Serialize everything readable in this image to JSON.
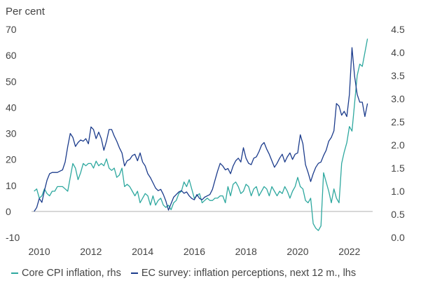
{
  "chart_data": {
    "type": "line",
    "title": "",
    "ylabel_left": "Per cent",
    "ylim_left": [
      -10,
      70
    ],
    "yticks_left": [
      "-10",
      "0",
      "10",
      "20",
      "30",
      "40",
      "50",
      "60",
      "70"
    ],
    "ylim_right": [
      0.0,
      4.5
    ],
    "yticks_right": [
      "0.0",
      "0.5",
      "1.0",
      "1.5",
      "2.0",
      "2.5",
      "3.0",
      "3.5",
      "4.0",
      "4.5"
    ],
    "xlim": [
      2009.7,
      2022.9
    ],
    "xticks": [
      "2010",
      "2012",
      "2014",
      "2016",
      "2018",
      "2020",
      "2022"
    ],
    "grid": false,
    "legend_position": "bottom",
    "series": [
      {
        "name": "Core CPI inflation, rhs",
        "axis": "right",
        "color": "#2ea89f",
        "points": [
          [
            2009.8,
            1.0
          ],
          [
            2009.9,
            1.05
          ],
          [
            2010.0,
            0.85
          ],
          [
            2010.1,
            0.9
          ],
          [
            2010.2,
            1.05
          ],
          [
            2010.3,
            0.95
          ],
          [
            2010.4,
            0.9
          ],
          [
            2010.5,
            1.0
          ],
          [
            2010.6,
            1.0
          ],
          [
            2010.7,
            1.1
          ],
          [
            2010.8,
            1.1
          ],
          [
            2010.9,
            1.1
          ],
          [
            2011.0,
            1.05
          ],
          [
            2011.1,
            1.0
          ],
          [
            2011.2,
            1.3
          ],
          [
            2011.3,
            1.6
          ],
          [
            2011.4,
            1.5
          ],
          [
            2011.5,
            1.25
          ],
          [
            2011.6,
            1.4
          ],
          [
            2011.7,
            1.6
          ],
          [
            2011.8,
            1.55
          ],
          [
            2011.9,
            1.6
          ],
          [
            2012.0,
            1.6
          ],
          [
            2012.1,
            1.5
          ],
          [
            2012.2,
            1.65
          ],
          [
            2012.3,
            1.55
          ],
          [
            2012.4,
            1.6
          ],
          [
            2012.5,
            1.55
          ],
          [
            2012.6,
            1.7
          ],
          [
            2012.7,
            1.5
          ],
          [
            2012.8,
            1.45
          ],
          [
            2012.9,
            1.5
          ],
          [
            2013.0,
            1.3
          ],
          [
            2013.1,
            1.35
          ],
          [
            2013.2,
            1.5
          ],
          [
            2013.3,
            1.1
          ],
          [
            2013.4,
            1.15
          ],
          [
            2013.5,
            1.1
          ],
          [
            2013.6,
            1.0
          ],
          [
            2013.7,
            0.9
          ],
          [
            2013.8,
            1.0
          ],
          [
            2013.9,
            0.75
          ],
          [
            2014.0,
            0.85
          ],
          [
            2014.1,
            0.95
          ],
          [
            2014.2,
            0.9
          ],
          [
            2014.3,
            0.7
          ],
          [
            2014.4,
            0.9
          ],
          [
            2014.5,
            0.7
          ],
          [
            2014.6,
            0.8
          ],
          [
            2014.7,
            0.85
          ],
          [
            2014.8,
            0.7
          ],
          [
            2014.9,
            0.65
          ],
          [
            2015.0,
            0.7
          ],
          [
            2015.1,
            0.6
          ],
          [
            2015.2,
            0.75
          ],
          [
            2015.3,
            0.8
          ],
          [
            2015.4,
            0.95
          ],
          [
            2015.5,
            1.0
          ],
          [
            2015.6,
            1.2
          ],
          [
            2015.7,
            1.1
          ],
          [
            2015.8,
            1.25
          ],
          [
            2015.9,
            1.05
          ],
          [
            2016.0,
            0.85
          ],
          [
            2016.1,
            0.9
          ],
          [
            2016.2,
            0.95
          ],
          [
            2016.3,
            0.75
          ],
          [
            2016.4,
            0.8
          ],
          [
            2016.5,
            0.85
          ],
          [
            2016.6,
            0.8
          ],
          [
            2016.7,
            0.8
          ],
          [
            2016.8,
            0.85
          ],
          [
            2016.9,
            0.85
          ],
          [
            2017.0,
            0.9
          ],
          [
            2017.1,
            0.9
          ],
          [
            2017.2,
            0.75
          ],
          [
            2017.3,
            1.1
          ],
          [
            2017.4,
            0.9
          ],
          [
            2017.5,
            1.15
          ],
          [
            2017.6,
            1.2
          ],
          [
            2017.7,
            1.1
          ],
          [
            2017.8,
            0.95
          ],
          [
            2017.9,
            1.0
          ],
          [
            2018.0,
            1.15
          ],
          [
            2018.1,
            1.1
          ],
          [
            2018.2,
            0.9
          ],
          [
            2018.3,
            1.05
          ],
          [
            2018.4,
            1.1
          ],
          [
            2018.5,
            0.9
          ],
          [
            2018.6,
            1.0
          ],
          [
            2018.7,
            1.1
          ],
          [
            2018.8,
            1.05
          ],
          [
            2018.9,
            0.9
          ],
          [
            2019.0,
            1.1
          ],
          [
            2019.1,
            1.0
          ],
          [
            2019.2,
            0.9
          ],
          [
            2019.3,
            1.0
          ],
          [
            2019.4,
            0.95
          ],
          [
            2019.5,
            1.1
          ],
          [
            2019.6,
            1.0
          ],
          [
            2019.7,
            0.85
          ],
          [
            2019.8,
            1.0
          ],
          [
            2019.9,
            1.1
          ],
          [
            2020.0,
            1.3
          ],
          [
            2020.1,
            1.1
          ],
          [
            2020.2,
            1.05
          ],
          [
            2020.3,
            0.8
          ],
          [
            2020.4,
            0.75
          ],
          [
            2020.5,
            0.85
          ],
          [
            2020.6,
            0.3
          ],
          [
            2020.7,
            0.2
          ],
          [
            2020.8,
            0.15
          ],
          [
            2020.9,
            0.25
          ],
          [
            2021.0,
            1.4
          ],
          [
            2021.1,
            1.2
          ],
          [
            2021.2,
            1.0
          ],
          [
            2021.3,
            0.75
          ],
          [
            2021.4,
            1.05
          ],
          [
            2021.5,
            0.85
          ],
          [
            2021.6,
            0.75
          ],
          [
            2021.7,
            1.6
          ],
          [
            2021.8,
            1.85
          ],
          [
            2021.9,
            2.05
          ],
          [
            2022.0,
            2.4
          ],
          [
            2022.1,
            2.3
          ],
          [
            2022.2,
            2.9
          ],
          [
            2022.3,
            3.5
          ],
          [
            2022.4,
            3.75
          ],
          [
            2022.5,
            3.7
          ],
          [
            2022.6,
            4.0
          ],
          [
            2022.7,
            4.3
          ]
        ]
      },
      {
        "name": "EC survey: inflation perceptions, next 12 m., lhs",
        "axis": "left",
        "color": "#1c3c8c",
        "points": [
          [
            2009.8,
            0.0
          ],
          [
            2009.9,
            1.5
          ],
          [
            2010.0,
            5.0
          ],
          [
            2010.1,
            3.5
          ],
          [
            2010.2,
            8.0
          ],
          [
            2010.3,
            12.0
          ],
          [
            2010.4,
            14.5
          ],
          [
            2010.5,
            15.0
          ],
          [
            2010.6,
            15.0
          ],
          [
            2010.7,
            15.0
          ],
          [
            2010.8,
            15.5
          ],
          [
            2010.9,
            16.0
          ],
          [
            2011.0,
            19.0
          ],
          [
            2011.1,
            25.0
          ],
          [
            2011.2,
            30.0
          ],
          [
            2011.3,
            28.5
          ],
          [
            2011.4,
            25.0
          ],
          [
            2011.5,
            26.5
          ],
          [
            2011.6,
            27.5
          ],
          [
            2011.7,
            27.0
          ],
          [
            2011.8,
            28.0
          ],
          [
            2011.9,
            26.0
          ],
          [
            2012.0,
            32.5
          ],
          [
            2012.1,
            31.5
          ],
          [
            2012.2,
            28.0
          ],
          [
            2012.3,
            30.5
          ],
          [
            2012.4,
            28.0
          ],
          [
            2012.5,
            23.5
          ],
          [
            2012.6,
            27.0
          ],
          [
            2012.7,
            31.5
          ],
          [
            2012.8,
            31.5
          ],
          [
            2012.9,
            29.0
          ],
          [
            2013.0,
            27.0
          ],
          [
            2013.1,
            24.5
          ],
          [
            2013.2,
            22.5
          ],
          [
            2013.3,
            17.5
          ],
          [
            2013.4,
            19.5
          ],
          [
            2013.5,
            20.0
          ],
          [
            2013.6,
            21.5
          ],
          [
            2013.7,
            22.0
          ],
          [
            2013.8,
            19.5
          ],
          [
            2013.9,
            22.5
          ],
          [
            2014.0,
            19.0
          ],
          [
            2014.1,
            17.5
          ],
          [
            2014.2,
            14.5
          ],
          [
            2014.3,
            13.0
          ],
          [
            2014.4,
            11.0
          ],
          [
            2014.5,
            9.0
          ],
          [
            2014.6,
            8.0
          ],
          [
            2014.7,
            8.5
          ],
          [
            2014.8,
            6.5
          ],
          [
            2014.9,
            4.0
          ],
          [
            2015.0,
            0.5
          ],
          [
            2015.1,
            3.0
          ],
          [
            2015.2,
            5.5
          ],
          [
            2015.3,
            6.5
          ],
          [
            2015.4,
            7.5
          ],
          [
            2015.5,
            8.0
          ],
          [
            2015.6,
            7.0
          ],
          [
            2015.7,
            7.5
          ],
          [
            2015.8,
            6.0
          ],
          [
            2015.9,
            5.0
          ],
          [
            2016.0,
            4.5
          ],
          [
            2016.1,
            6.5
          ],
          [
            2016.2,
            5.0
          ],
          [
            2016.3,
            4.5
          ],
          [
            2016.4,
            5.5
          ],
          [
            2016.5,
            6.0
          ],
          [
            2016.6,
            6.5
          ],
          [
            2016.7,
            8.5
          ],
          [
            2016.8,
            12.0
          ],
          [
            2016.9,
            15.5
          ],
          [
            2017.0,
            18.5
          ],
          [
            2017.1,
            17.5
          ],
          [
            2017.2,
            16.0
          ],
          [
            2017.3,
            16.5
          ],
          [
            2017.4,
            14.5
          ],
          [
            2017.5,
            17.5
          ],
          [
            2017.6,
            19.5
          ],
          [
            2017.7,
            20.5
          ],
          [
            2017.8,
            19.0
          ],
          [
            2017.9,
            24.5
          ],
          [
            2018.0,
            20.5
          ],
          [
            2018.1,
            18.5
          ],
          [
            2018.2,
            18.0
          ],
          [
            2018.3,
            20.5
          ],
          [
            2018.4,
            21.0
          ],
          [
            2018.5,
            23.0
          ],
          [
            2018.6,
            25.5
          ],
          [
            2018.7,
            26.5
          ],
          [
            2018.8,
            24.0
          ],
          [
            2018.9,
            22.0
          ],
          [
            2019.0,
            19.5
          ],
          [
            2019.1,
            17.0
          ],
          [
            2019.2,
            18.5
          ],
          [
            2019.3,
            20.5
          ],
          [
            2019.4,
            22.0
          ],
          [
            2019.5,
            19.0
          ],
          [
            2019.6,
            21.0
          ],
          [
            2019.7,
            22.5
          ],
          [
            2019.8,
            20.0
          ],
          [
            2019.9,
            22.0
          ],
          [
            2020.0,
            22.5
          ],
          [
            2020.1,
            29.5
          ],
          [
            2020.2,
            26.0
          ],
          [
            2020.3,
            18.0
          ],
          [
            2020.4,
            15.0
          ],
          [
            2020.5,
            11.5
          ],
          [
            2020.6,
            14.5
          ],
          [
            2020.7,
            17.0
          ],
          [
            2020.8,
            18.5
          ],
          [
            2020.9,
            19.0
          ],
          [
            2021.0,
            21.5
          ],
          [
            2021.1,
            23.5
          ],
          [
            2021.2,
            27.0
          ],
          [
            2021.3,
            28.5
          ],
          [
            2021.4,
            31.0
          ],
          [
            2021.5,
            41.5
          ],
          [
            2021.6,
            40.5
          ],
          [
            2021.7,
            37.0
          ],
          [
            2021.8,
            38.5
          ],
          [
            2021.9,
            36.5
          ],
          [
            2022.0,
            45.0
          ],
          [
            2022.1,
            63.0
          ],
          [
            2022.2,
            52.0
          ],
          [
            2022.3,
            45.0
          ],
          [
            2022.4,
            42.0
          ],
          [
            2022.5,
            42.0
          ],
          [
            2022.6,
            36.5
          ],
          [
            2022.7,
            41.5
          ]
        ]
      }
    ]
  }
}
